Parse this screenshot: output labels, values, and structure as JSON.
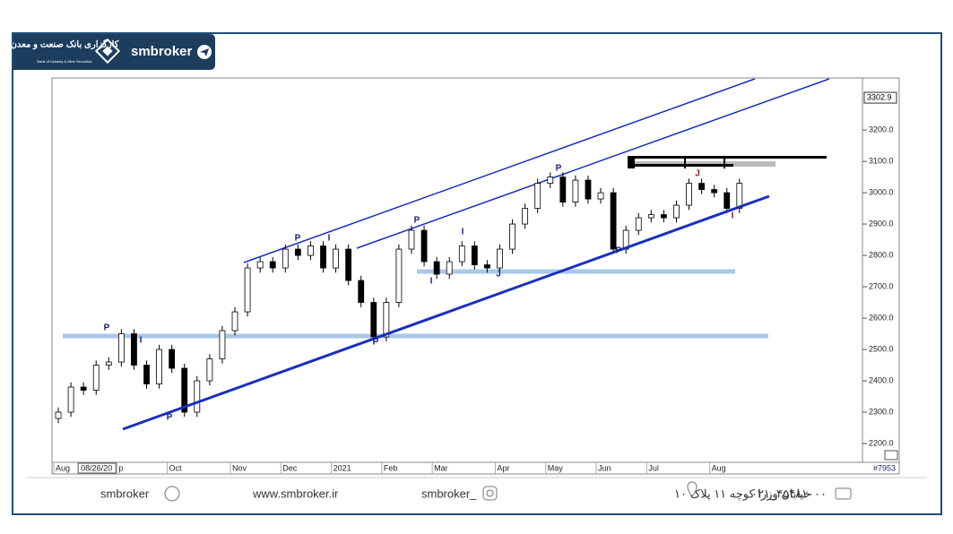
{
  "header": {
    "brand": "smbroker",
    "logo_fa": "کارگزاری بانک صنعت و معدن",
    "logo_en": "Bank of Industry & Mine Securities"
  },
  "chart_data": {
    "type": "candlestick",
    "categories": [
      "Aug",
      null,
      "08/26/20",
      null,
      null,
      "p",
      null,
      null,
      null,
      "Oct",
      null,
      null,
      null,
      null,
      "Nov",
      null,
      null,
      null,
      "Dec",
      null,
      null,
      null,
      "2021",
      null,
      null,
      null,
      "Feb",
      null,
      null,
      null,
      "Mar",
      null,
      null,
      null,
      null,
      "Apr",
      null,
      null,
      null,
      "May",
      null,
      null,
      null,
      "Jun",
      null,
      null,
      null,
      "Jul",
      null,
      null,
      null,
      null,
      "Aug",
      null,
      null
    ],
    "open": [
      2280,
      2300,
      2380,
      2370,
      2450,
      2460,
      2550,
      2450,
      2390,
      2500,
      2440,
      2300,
      2400,
      2470,
      2560,
      2620,
      2760,
      2780,
      2760,
      2820,
      2800,
      2830,
      2760,
      2820,
      2720,
      2650,
      2540,
      2650,
      2820,
      2880,
      2780,
      2740,
      2780,
      2830,
      2770,
      2760,
      2820,
      2900,
      2950,
      3030,
      3050,
      2970,
      3040,
      2980,
      3000,
      2820,
      2880,
      2920,
      2930,
      2920,
      2960,
      3030,
      3010,
      3000,
      2950
    ],
    "high": [
      2315,
      2395,
      2395,
      2465,
      2475,
      2565,
      2565,
      2465,
      2515,
      2515,
      2455,
      2415,
      2485,
      2575,
      2635,
      2775,
      2795,
      2795,
      2835,
      2835,
      2845,
      2845,
      2835,
      2835,
      2735,
      2665,
      2665,
      2835,
      2895,
      2895,
      2795,
      2795,
      2845,
      2845,
      2785,
      2835,
      2915,
      2965,
      3045,
      3065,
      3065,
      3055,
      3055,
      3015,
      3015,
      2895,
      2935,
      2945,
      2945,
      2975,
      3045,
      3045,
      3025,
      3015,
      3045
    ],
    "low": [
      2265,
      2285,
      2355,
      2355,
      2435,
      2445,
      2435,
      2375,
      2375,
      2425,
      2285,
      2285,
      2385,
      2455,
      2545,
      2605,
      2745,
      2745,
      2745,
      2785,
      2785,
      2745,
      2745,
      2705,
      2635,
      2525,
      2525,
      2635,
      2805,
      2765,
      2725,
      2725,
      2765,
      2755,
      2745,
      2745,
      2805,
      2885,
      2935,
      3015,
      2955,
      2955,
      2965,
      2965,
      2805,
      2805,
      2865,
      2905,
      2905,
      2905,
      2945,
      2995,
      2985,
      2935,
      2935
    ],
    "close": [
      2300,
      2380,
      2370,
      2450,
      2460,
      2550,
      2450,
      2390,
      2500,
      2440,
      2300,
      2400,
      2470,
      2560,
      2620,
      2760,
      2780,
      2760,
      2820,
      2800,
      2830,
      2760,
      2820,
      2720,
      2650,
      2540,
      2650,
      2820,
      2880,
      2780,
      2740,
      2780,
      2830,
      2770,
      2760,
      2820,
      2900,
      2950,
      3030,
      3050,
      2970,
      3040,
      2980,
      3000,
      2820,
      2880,
      2920,
      2930,
      2920,
      2960,
      3030,
      3010,
      3000,
      2950,
      3030
    ],
    "up_color": "#ffffff",
    "down_color": "#000000",
    "ylim": [
      2140,
      3366
    ],
    "yticks": [
      {
        "value": 2200,
        "label": "2200.0"
      },
      {
        "value": 2300,
        "label": "2300.0"
      },
      {
        "value": 2400,
        "label": "2400.0"
      },
      {
        "value": 2500,
        "label": "2500.0"
      },
      {
        "value": 2600,
        "label": "2600.0"
      },
      {
        "value": 2700,
        "label": "2700.0"
      },
      {
        "value": 2800,
        "label": "2800.0"
      },
      {
        "value": 2900,
        "label": "2900.0"
      },
      {
        "value": 3000,
        "label": "3000.0"
      },
      {
        "value": 3100,
        "label": "3100.0"
      },
      {
        "value": 3200,
        "label": "3200.0"
      }
    ],
    "price_marker": {
      "value": 3302.9,
      "label": "3302.9"
    },
    "annotations": [
      "P",
      "I",
      "P",
      "P",
      "I",
      "P",
      "P",
      "I",
      "I",
      "J",
      "P",
      "P",
      "J",
      "I"
    ],
    "chart_id": "#7953"
  },
  "footer": {
    "telegram": "smbroker",
    "website": "www.smbroker.ir",
    "instagram": "smbroker_",
    "address": "خیابان وزرا کوچه ۱۱ پلاک ۱۰",
    "phone": "۰۲۱_۴۵۴۸۱۰۰۰"
  }
}
